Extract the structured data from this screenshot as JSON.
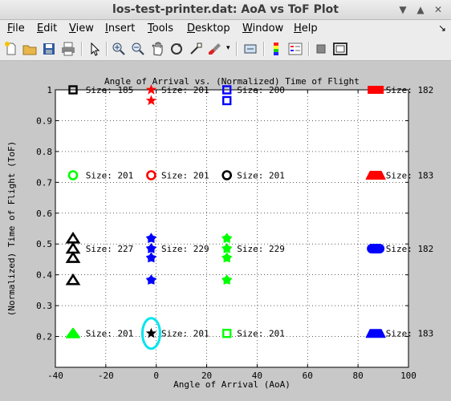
{
  "window": {
    "title": "los-test-printer.dat: AoA vs ToF Plot"
  },
  "menu": {
    "items": [
      {
        "label": "File",
        "ul": "F",
        "rest": "ile"
      },
      {
        "label": "Edit",
        "ul": "E",
        "rest": "dit"
      },
      {
        "label": "View",
        "ul": "V",
        "rest": "iew"
      },
      {
        "label": "Insert",
        "ul": "I",
        "rest": "nsert"
      },
      {
        "label": "Tools",
        "ul": "T",
        "rest": "ools"
      },
      {
        "label": "Desktop",
        "ul": "D",
        "rest": "esktop"
      },
      {
        "label": "Window",
        "ul": "W",
        "rest": "indow"
      },
      {
        "label": "Help",
        "ul": "H",
        "rest": "elp"
      }
    ]
  },
  "toolbar": {
    "buttons": [
      "new-figure-icon",
      "open-file-icon",
      "save-icon",
      "print-icon",
      "pointer-icon",
      "zoom-in-icon",
      "zoom-out-icon",
      "pan-icon",
      "rotate-icon",
      "data-cursor-icon",
      "brush-icon",
      "link-icon",
      "colorbar-icon",
      "legend-icon",
      "hide-tools-icon",
      "dock-icon"
    ]
  },
  "chart_data": {
    "type": "scatter",
    "title": "Angle of Arrival vs. (Normalized) Time of Flight",
    "xlabel": "Angle of Arrival (AoA)",
    "ylabel": "(Normalized) Time of Flight (ToF)",
    "xlim": [
      -40,
      100
    ],
    "ylim": [
      0.1,
      1.0
    ],
    "xticks": [
      -40,
      -20,
      0,
      20,
      40,
      60,
      80,
      100
    ],
    "yticks": [
      0.2,
      0.3,
      0.4,
      0.5,
      0.6,
      0.7,
      0.8,
      0.9,
      1
    ],
    "grid": "dotted",
    "points": [
      {
        "x": -33,
        "y": 1.0,
        "marker": "square",
        "color": "#000000"
      },
      {
        "x": -2,
        "y": 1.0,
        "marker": "star",
        "color": "#ff0000"
      },
      {
        "x": -2,
        "y": 0.965,
        "marker": "star",
        "color": "#ff0000"
      },
      {
        "x": 28,
        "y": 1.0,
        "marker": "square",
        "color": "#0000ff"
      },
      {
        "x": 28,
        "y": 0.965,
        "marker": "square",
        "color": "#0000ff"
      },
      {
        "x": 87,
        "y": 1.0,
        "marker": "filled-rect",
        "color": "#ff0000"
      },
      {
        "x": -33,
        "y": 0.723,
        "marker": "circle",
        "color": "#00ff00"
      },
      {
        "x": -2,
        "y": 0.723,
        "marker": "circle",
        "color": "#ff0000"
      },
      {
        "x": 28,
        "y": 0.723,
        "marker": "circle",
        "color": "#000000"
      },
      {
        "x": 87,
        "y": 0.723,
        "marker": "filled-trapezoid",
        "color": "#ff0000"
      },
      {
        "x": -33,
        "y": 0.518,
        "marker": "triangle",
        "color": "#000000"
      },
      {
        "x": -33,
        "y": 0.485,
        "marker": "triangle",
        "color": "#000000"
      },
      {
        "x": -33,
        "y": 0.455,
        "marker": "triangle",
        "color": "#000000"
      },
      {
        "x": -33,
        "y": 0.383,
        "marker": "triangle",
        "color": "#000000"
      },
      {
        "x": -2,
        "y": 0.518,
        "marker": "pentagram",
        "color": "#0000ff"
      },
      {
        "x": -2,
        "y": 0.485,
        "marker": "pentagram",
        "color": "#0000ff"
      },
      {
        "x": -2,
        "y": 0.455,
        "marker": "pentagram",
        "color": "#0000ff"
      },
      {
        "x": -2,
        "y": 0.383,
        "marker": "pentagram",
        "color": "#0000ff"
      },
      {
        "x": 28,
        "y": 0.518,
        "marker": "pentagram",
        "color": "#00ff00"
      },
      {
        "x": 28,
        "y": 0.485,
        "marker": "pentagram",
        "color": "#00ff00"
      },
      {
        "x": 28,
        "y": 0.455,
        "marker": "pentagram",
        "color": "#00ff00"
      },
      {
        "x": 28,
        "y": 0.383,
        "marker": "pentagram",
        "color": "#00ff00"
      },
      {
        "x": 87,
        "y": 0.485,
        "marker": "filled-oval",
        "color": "#0000ff"
      },
      {
        "x": -33,
        "y": 0.21,
        "marker": "filled-triangle",
        "color": "#00ff00"
      },
      {
        "x": -2,
        "y": 0.21,
        "marker": "star",
        "color": "#000000"
      },
      {
        "x": 28,
        "y": 0.21,
        "marker": "square",
        "color": "#00ff00"
      },
      {
        "x": 87,
        "y": 0.21,
        "marker": "filled-trapezoid",
        "color": "#0000ff"
      }
    ],
    "annotations": [
      {
        "text": "Size: 185",
        "x": -28,
        "y": 1.0
      },
      {
        "text": "Size: 201",
        "x": 2,
        "y": 1.0
      },
      {
        "text": "Size: 200",
        "x": 32,
        "y": 1.0
      },
      {
        "text": "Size: 182",
        "x": 91,
        "y": 1.0
      },
      {
        "text": "Size: 201",
        "x": -28,
        "y": 0.723
      },
      {
        "text": "Size: 201",
        "x": 2,
        "y": 0.723
      },
      {
        "text": "Size: 201",
        "x": 32,
        "y": 0.723
      },
      {
        "text": "Size: 183",
        "x": 91,
        "y": 0.723
      },
      {
        "text": "Size: 227",
        "x": -28,
        "y": 0.485
      },
      {
        "text": "Size: 229",
        "x": 2,
        "y": 0.485
      },
      {
        "text": "Size: 229",
        "x": 32,
        "y": 0.485
      },
      {
        "text": "Size: 182",
        "x": 91,
        "y": 0.485
      },
      {
        "text": "Size: 201",
        "x": -28,
        "y": 0.21
      },
      {
        "text": "Size: 201",
        "x": 2,
        "y": 0.21
      },
      {
        "text": "Size: 201",
        "x": 32,
        "y": 0.21
      },
      {
        "text": "Size: 183",
        "x": 91,
        "y": 0.21
      }
    ],
    "highlight": {
      "x": -2,
      "y": 0.21,
      "color": "#00e5ee"
    }
  }
}
